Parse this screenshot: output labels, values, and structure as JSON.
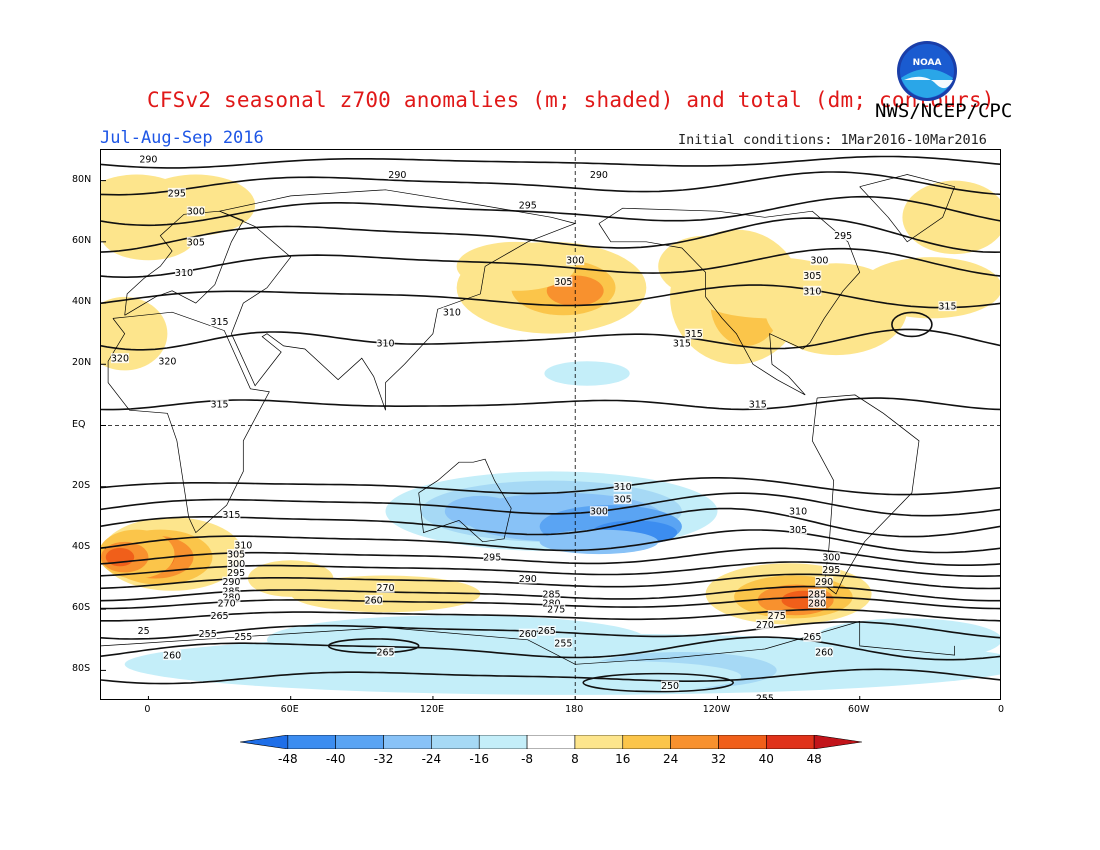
{
  "header": {
    "title": "CFSv2 seasonal z700 anomalies (m; shaded) and total (dm; contours)",
    "agency": "NWS/NCEP/CPC",
    "period": "Jul-Aug-Sep 2016",
    "initial_conditions": "Initial conditions: 1Mar2016-10Mar2016"
  },
  "logo": {
    "text": "NOAA",
    "icon": "noaa-logo"
  },
  "map": {
    "lat_ticks": [
      "80N",
      "60N",
      "40N",
      "20N",
      "EQ",
      "20S",
      "40S",
      "60S",
      "80S"
    ],
    "lon_ticks": [
      "0",
      "60E",
      "120E",
      "180",
      "120W",
      "60W",
      "0"
    ],
    "contour_labels": [
      {
        "value": "290",
        "lon": 0,
        "lat": 87
      },
      {
        "value": "290",
        "lon": 105,
        "lat": 82
      },
      {
        "value": "290",
        "lon": 190,
        "lat": 82
      },
      {
        "value": "295",
        "lon": 12,
        "lat": 76
      },
      {
        "value": "295",
        "lon": 160,
        "lat": 72
      },
      {
        "value": "295",
        "lon": 293,
        "lat": 62
      },
      {
        "value": "300",
        "lon": 20,
        "lat": 70
      },
      {
        "value": "300",
        "lon": 180,
        "lat": 54
      },
      {
        "value": "300",
        "lon": 283,
        "lat": 54
      },
      {
        "value": "305",
        "lon": 20,
        "lat": 60
      },
      {
        "value": "305",
        "lon": 175,
        "lat": 47
      },
      {
        "value": "305",
        "lon": 280,
        "lat": 49
      },
      {
        "value": "310",
        "lon": 15,
        "lat": 50
      },
      {
        "value": "310",
        "lon": 128,
        "lat": 37
      },
      {
        "value": "310",
        "lon": 280,
        "lat": 44
      },
      {
        "value": "310",
        "lon": 100,
        "lat": 27
      },
      {
        "value": "315",
        "lon": 30,
        "lat": 34
      },
      {
        "value": "315",
        "lon": 225,
        "lat": 27
      },
      {
        "value": "315",
        "lon": 230,
        "lat": 30
      },
      {
        "value": "315",
        "lon": 337,
        "lat": 39
      },
      {
        "value": "320",
        "lon": 8,
        "lat": 21
      },
      {
        "value": "320",
        "lon": 348,
        "lat": 22
      },
      {
        "value": "315",
        "lon": 30,
        "lat": 7
      },
      {
        "value": "315",
        "lon": 257,
        "lat": 7
      },
      {
        "value": "310",
        "lon": 200,
        "lat": -20
      },
      {
        "value": "305",
        "lon": 200,
        "lat": -24
      },
      {
        "value": "300",
        "lon": 190,
        "lat": -28
      },
      {
        "value": "310",
        "lon": 274,
        "lat": -28
      },
      {
        "value": "305",
        "lon": 274,
        "lat": -34
      },
      {
        "value": "315",
        "lon": 35,
        "lat": -29
      },
      {
        "value": "310",
        "lon": 40,
        "lat": -39
      },
      {
        "value": "305",
        "lon": 37,
        "lat": -42
      },
      {
        "value": "300",
        "lon": 37,
        "lat": -45
      },
      {
        "value": "295",
        "lon": 37,
        "lat": -48
      },
      {
        "value": "290",
        "lon": 35,
        "lat": -51
      },
      {
        "value": "285",
        "lon": 35,
        "lat": -54
      },
      {
        "value": "280",
        "lon": 35,
        "lat": -56
      },
      {
        "value": "270",
        "lon": 33,
        "lat": -58
      },
      {
        "value": "265",
        "lon": 30,
        "lat": -62
      },
      {
        "value": "295",
        "lon": 145,
        "lat": -43
      },
      {
        "value": "290",
        "lon": 160,
        "lat": -50
      },
      {
        "value": "270",
        "lon": 100,
        "lat": -53
      },
      {
        "value": "260",
        "lon": 95,
        "lat": -57
      },
      {
        "value": "285",
        "lon": 170,
        "lat": -55
      },
      {
        "value": "280",
        "lon": 170,
        "lat": -58
      },
      {
        "value": "275",
        "lon": 172,
        "lat": -60
      },
      {
        "value": "265",
        "lon": 168,
        "lat": -67
      },
      {
        "value": "260",
        "lon": 160,
        "lat": -68
      },
      {
        "value": "255",
        "lon": 25,
        "lat": -68
      },
      {
        "value": "255",
        "lon": 40,
        "lat": -69
      },
      {
        "value": "255",
        "lon": 175,
        "lat": -71
      },
      {
        "value": "265",
        "lon": 100,
        "lat": -74
      },
      {
        "value": "260",
        "lon": 10,
        "lat": -75
      },
      {
        "value": "300",
        "lon": 288,
        "lat": -43
      },
      {
        "value": "295",
        "lon": 288,
        "lat": -47
      },
      {
        "value": "290",
        "lon": 285,
        "lat": -51
      },
      {
        "value": "285",
        "lon": 282,
        "lat": -55
      },
      {
        "value": "280",
        "lon": 282,
        "lat": -58
      },
      {
        "value": "275",
        "lon": 265,
        "lat": -62
      },
      {
        "value": "270",
        "lon": 260,
        "lat": -65
      },
      {
        "value": "265",
        "lon": 280,
        "lat": -69
      },
      {
        "value": "260",
        "lon": 285,
        "lat": -74
      },
      {
        "value": "250",
        "lon": 220,
        "lat": -85
      },
      {
        "value": "255",
        "lon": 260,
        "lat": -89
      },
      {
        "value": "25",
        "lon": 358,
        "lat": -67
      }
    ],
    "colors": {
      "neg48": "#1e6ee8",
      "neg40": "#3c8df0",
      "neg32": "#5aa4f3",
      "neg24": "#88c2f7",
      "neg16": "#a6d9f5",
      "neg8": "#c4eef9",
      "pos8": "#fde58c",
      "pos16": "#fbc54a",
      "pos24": "#f8912e",
      "pos32": "#f05f1a",
      "pos40": "#e0321a",
      "pos48": "#c2141a"
    }
  },
  "colorbar": {
    "labels": [
      "-48",
      "-40",
      "-32",
      "-24",
      "-16",
      "-8",
      "8",
      "16",
      "24",
      "32",
      "40",
      "48"
    ],
    "colors": [
      "#1e6ee8",
      "#3c8df0",
      "#5aa4f3",
      "#88c2f7",
      "#a6d9f5",
      "#c4eef9",
      "#ffffff",
      "#fde58c",
      "#fbc54a",
      "#f8912e",
      "#f05f1a",
      "#e0321a",
      "#c2141a"
    ]
  }
}
